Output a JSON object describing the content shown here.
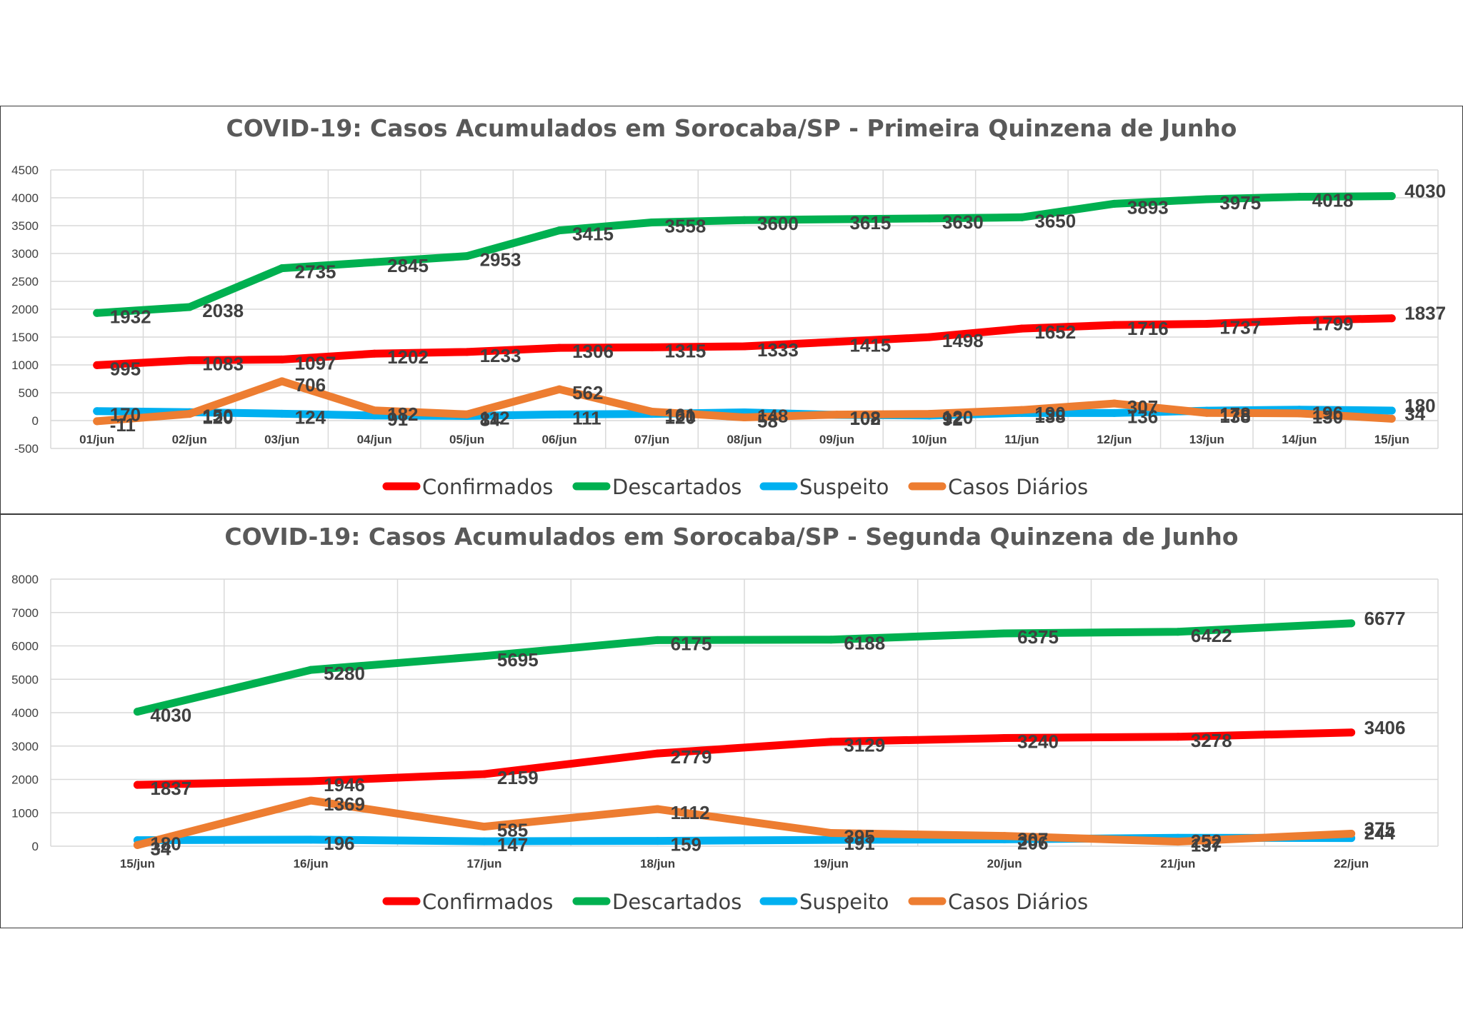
{
  "chart_data": [
    {
      "type": "line",
      "title": "COVID-19: Casos Acumulados em Sorocaba/SP - Primeira Quinzena de Junho",
      "categories": [
        "01/jun",
        "02/jun",
        "03/jun",
        "04/jun",
        "05/jun",
        "06/jun",
        "07/jun",
        "08/jun",
        "09/jun",
        "10/jun",
        "11/jun",
        "12/jun",
        "13/jun",
        "14/jun",
        "15/jun"
      ],
      "ylim": [
        -500,
        4500
      ],
      "yticks": [
        -500,
        0,
        500,
        1000,
        1500,
        2000,
        2500,
        3000,
        3500,
        4000,
        4500
      ],
      "grid": true,
      "legend_position": "bottom",
      "series": [
        {
          "name": "Confirmados",
          "color": "#ff0000",
          "values": [
            995,
            1083,
            1097,
            1202,
            1233,
            1306,
            1315,
            1333,
            1415,
            1498,
            1652,
            1716,
            1737,
            1799,
            1837
          ]
        },
        {
          "name": "Descartados",
          "color": "#00b050",
          "values": [
            1932,
            2038,
            2735,
            2845,
            2953,
            3415,
            3558,
            3600,
            3615,
            3630,
            3650,
            3893,
            3975,
            4018,
            4030
          ]
        },
        {
          "name": "Suspeito",
          "color": "#00b0f0",
          "values": [
            170,
            150,
            124,
            91,
            84,
            111,
            120,
            148,
            102,
            92,
            138,
            136,
            178,
            196,
            180
          ]
        },
        {
          "name": "Casos Diários",
          "color": "#ed7d31",
          "values": [
            -11,
            120,
            706,
            182,
            112,
            562,
            161,
            58,
            108,
            120,
            190,
            307,
            138,
            130,
            34
          ]
        }
      ]
    },
    {
      "type": "line",
      "title": "COVID-19: Casos Acumulados em Sorocaba/SP - Segunda Quinzena de Junho",
      "categories": [
        "15/jun",
        "16/jun",
        "17/jun",
        "18/jun",
        "19/jun",
        "20/jun",
        "21/jun",
        "22/jun"
      ],
      "ylim": [
        0,
        8000
      ],
      "yticks": [
        0,
        1000,
        2000,
        3000,
        4000,
        5000,
        6000,
        7000,
        8000
      ],
      "grid": true,
      "legend_position": "bottom",
      "series": [
        {
          "name": "Confirmados",
          "color": "#ff0000",
          "values": [
            1837,
            1946,
            2159,
            2779,
            3129,
            3240,
            3278,
            3406
          ]
        },
        {
          "name": "Descartados",
          "color": "#00b050",
          "values": [
            4030,
            5280,
            5695,
            6175,
            6188,
            6375,
            6422,
            6677
          ]
        },
        {
          "name": "Suspeito",
          "color": "#00b0f0",
          "values": [
            180,
            196,
            147,
            159,
            191,
            206,
            252,
            244
          ]
        },
        {
          "name": "Casos Diários",
          "color": "#ed7d31",
          "values": [
            34,
            1369,
            585,
            1112,
            395,
            307,
            137,
            375
          ]
        }
      ]
    }
  ]
}
